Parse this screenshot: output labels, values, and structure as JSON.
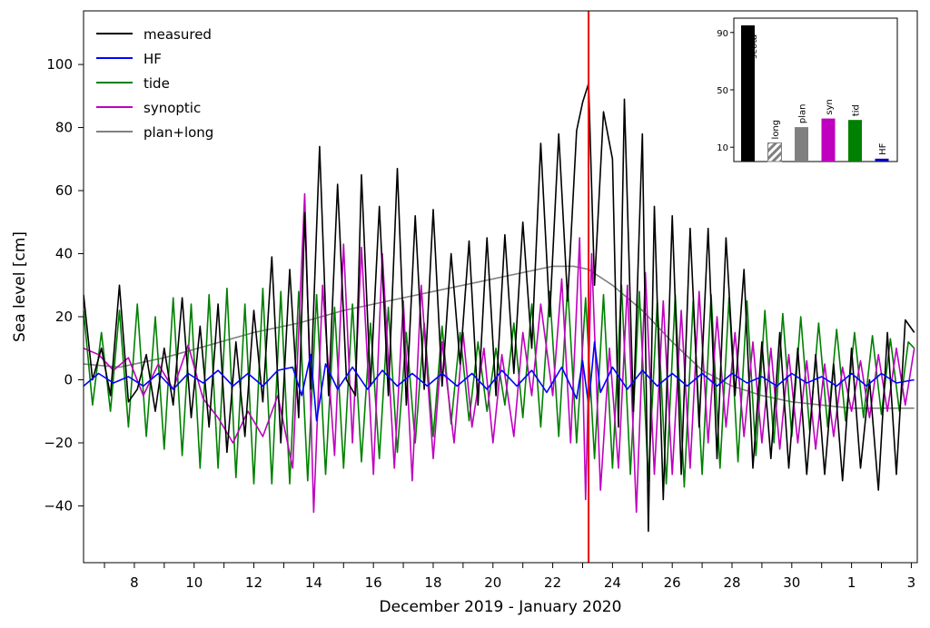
{
  "chart_data": [
    {
      "type": "line",
      "title": "",
      "xlabel": "December 2019 - January 2020",
      "ylabel": "Sea level [cm]",
      "x_unit": "day of period (day 1 = 1 December 2019, day 32 = 1 January 2020)",
      "xlim": [
        6.3,
        34.2
      ],
      "ylim": [
        -58,
        117
      ],
      "x_ticks": [
        {
          "day": 8,
          "label": "8"
        },
        {
          "day": 10,
          "label": "10"
        },
        {
          "day": 12,
          "label": "12"
        },
        {
          "day": 14,
          "label": "14"
        },
        {
          "day": 16,
          "label": "16"
        },
        {
          "day": 18,
          "label": "18"
        },
        {
          "day": 20,
          "label": "20"
        },
        {
          "day": 22,
          "label": "22"
        },
        {
          "day": 24,
          "label": "24"
        },
        {
          "day": 26,
          "label": "26"
        },
        {
          "day": 28,
          "label": "28"
        },
        {
          "day": 30,
          "label": "30"
        },
        {
          "day": 32,
          "label": "1"
        },
        {
          "day": 34,
          "label": "3"
        }
      ],
      "y_ticks": [
        {
          "value": -40,
          "label": "−40"
        },
        {
          "value": -20,
          "label": "−20"
        },
        {
          "value": 0,
          "label": "0"
        },
        {
          "value": 20,
          "label": "20"
        },
        {
          "value": 40,
          "label": "40"
        },
        {
          "value": 60,
          "label": "60"
        },
        {
          "value": 80,
          "label": "80"
        },
        {
          "value": 100,
          "label": "100"
        }
      ],
      "grid": false,
      "legend_position": "top-left",
      "vertical_marker": {
        "x": 23.2,
        "color": "#e8000b"
      },
      "series": [
        {
          "name": "measured",
          "color": "#000000",
          "x": [
            6.3,
            6.6,
            6.9,
            7.2,
            7.5,
            7.8,
            8.1,
            8.4,
            8.7,
            9.0,
            9.3,
            9.6,
            9.9,
            10.2,
            10.5,
            10.8,
            11.1,
            11.4,
            11.7,
            12.0,
            12.3,
            12.6,
            12.9,
            13.2,
            13.5,
            13.7,
            13.9,
            14.2,
            14.5,
            14.8,
            15.1,
            15.4,
            15.6,
            15.9,
            16.2,
            16.5,
            16.8,
            17.1,
            17.4,
            17.7,
            18.0,
            18.3,
            18.6,
            18.9,
            19.2,
            19.5,
            19.8,
            20.1,
            20.4,
            20.7,
            21.0,
            21.3,
            21.6,
            21.9,
            22.2,
            22.5,
            22.8,
            23.0,
            23.2,
            23.4,
            23.7,
            24.0,
            24.2,
            24.4,
            24.7,
            25.0,
            25.2,
            25.4,
            25.7,
            26.0,
            26.3,
            26.6,
            26.9,
            27.2,
            27.5,
            27.8,
            28.1,
            28.4,
            28.7,
            29.0,
            29.3,
            29.6,
            29.9,
            30.2,
            30.5,
            30.8,
            31.1,
            31.4,
            31.7,
            32.0,
            32.3,
            32.6,
            32.9,
            33.2,
            33.5,
            33.8,
            34.1
          ],
          "y": [
            27,
            0,
            10,
            -5,
            30,
            -7,
            -3,
            8,
            -10,
            10,
            -8,
            26,
            -12,
            17,
            -15,
            24,
            -23,
            12,
            -18,
            22,
            -7,
            39,
            -20,
            35,
            -12,
            53,
            -3,
            74,
            -5,
            62,
            0,
            -5,
            65,
            -2,
            55,
            -5,
            67,
            -8,
            52,
            -3,
            54,
            -2,
            40,
            5,
            44,
            -8,
            45,
            -5,
            46,
            2,
            50,
            10,
            75,
            20,
            78,
            25,
            79,
            88,
            94,
            30,
            85,
            70,
            -15,
            89,
            -10,
            78,
            -48,
            55,
            -38,
            52,
            -30,
            48,
            -15,
            48,
            -25,
            45,
            -5,
            35,
            -28,
            12,
            -25,
            15,
            -28,
            10,
            -30,
            8,
            -30,
            5,
            -32,
            10,
            -28,
            0,
            -35,
            15,
            -30,
            19,
            15
          ]
        },
        {
          "name": "HF",
          "color": "#0000ff",
          "x": [
            6.3,
            6.8,
            7.3,
            7.8,
            8.3,
            8.8,
            9.3,
            9.8,
            10.3,
            10.8,
            11.3,
            11.8,
            12.3,
            12.8,
            13.3,
            13.6,
            13.9,
            14.1,
            14.4,
            14.8,
            15.3,
            15.8,
            16.3,
            16.8,
            17.3,
            17.8,
            18.3,
            18.8,
            19.3,
            19.8,
            20.3,
            20.8,
            21.3,
            21.8,
            22.3,
            22.8,
            23.0,
            23.2,
            23.4,
            23.6,
            24.0,
            24.5,
            25.0,
            25.5,
            26.0,
            26.5,
            27.0,
            27.5,
            28.0,
            28.5,
            29.0,
            29.5,
            30.0,
            30.5,
            31.0,
            31.5,
            32.0,
            32.5,
            33.0,
            33.5,
            34.1
          ],
          "y": [
            -2,
            2,
            -1,
            1,
            -2,
            2,
            -3,
            2,
            -1,
            3,
            -2,
            2,
            -2,
            3,
            4,
            -5,
            8,
            -13,
            5,
            -3,
            4,
            -3,
            3,
            -2,
            2,
            -2,
            2,
            -2,
            2,
            -3,
            3,
            -2,
            3,
            -4,
            4,
            -6,
            6,
            -8,
            12,
            -4,
            4,
            -3,
            3,
            -2,
            2,
            -2,
            2,
            -2,
            2,
            -1,
            1,
            -2,
            2,
            -1,
            1,
            -2,
            2,
            -2,
            2,
            -1,
            0
          ]
        },
        {
          "name": "tide",
          "color": "#008000",
          "x": [
            6.3,
            6.6,
            6.9,
            7.2,
            7.5,
            7.8,
            8.1,
            8.4,
            8.7,
            9.0,
            9.3,
            9.6,
            9.9,
            10.2,
            10.5,
            10.8,
            11.1,
            11.4,
            11.7,
            12.0,
            12.3,
            12.6,
            12.9,
            13.2,
            13.5,
            13.8,
            14.1,
            14.4,
            14.7,
            15.0,
            15.3,
            15.6,
            15.9,
            16.2,
            16.5,
            16.8,
            17.1,
            17.4,
            17.7,
            18.0,
            18.3,
            18.6,
            18.9,
            19.2,
            19.5,
            19.8,
            20.1,
            20.4,
            20.7,
            21.0,
            21.3,
            21.6,
            21.9,
            22.2,
            22.5,
            22.8,
            23.1,
            23.4,
            23.7,
            24.0,
            24.3,
            24.6,
            24.9,
            25.2,
            25.5,
            25.8,
            26.1,
            26.4,
            26.7,
            27.0,
            27.3,
            27.6,
            27.9,
            28.2,
            28.5,
            28.8,
            29.1,
            29.4,
            29.7,
            30.0,
            30.3,
            30.6,
            30.9,
            31.2,
            31.5,
            31.8,
            32.1,
            32.4,
            32.7,
            33.0,
            33.3,
            33.6,
            33.9,
            34.1
          ],
          "y": [
            22,
            -8,
            15,
            -10,
            22,
            -15,
            24,
            -18,
            20,
            -22,
            26,
            -24,
            24,
            -28,
            27,
            -28,
            29,
            -31,
            24,
            -33,
            29,
            -33,
            28,
            -33,
            28,
            -32,
            27,
            -30,
            23,
            -28,
            24,
            -26,
            18,
            -25,
            23,
            -23,
            15,
            -20,
            18,
            -18,
            17,
            -14,
            15,
            -13,
            12,
            -10,
            10,
            -8,
            18,
            -12,
            24,
            -15,
            28,
            -18,
            30,
            -20,
            26,
            -25,
            27,
            -28,
            30,
            -30,
            28,
            -32,
            25,
            -33,
            27,
            -34,
            25,
            -30,
            27,
            -28,
            26,
            -26,
            25,
            -24,
            22,
            -20,
            21,
            -18,
            20,
            -16,
            18,
            -15,
            16,
            -13,
            15,
            -12,
            14,
            -11,
            13,
            -10,
            12,
            10
          ]
        },
        {
          "name": "synoptic",
          "color": "#bf00bf",
          "x": [
            6.3,
            6.8,
            7.3,
            7.8,
            8.3,
            8.8,
            9.3,
            9.8,
            10.3,
            10.8,
            11.3,
            11.8,
            12.3,
            12.8,
            13.3,
            13.7,
            14.0,
            14.3,
            14.7,
            15.0,
            15.3,
            15.6,
            16.0,
            16.3,
            16.7,
            17.0,
            17.3,
            17.6,
            18.0,
            18.3,
            18.7,
            19.0,
            19.3,
            19.7,
            20.0,
            20.3,
            20.7,
            21.0,
            21.3,
            21.6,
            22.0,
            22.3,
            22.6,
            22.9,
            23.1,
            23.3,
            23.6,
            23.9,
            24.2,
            24.5,
            24.8,
            25.1,
            25.4,
            25.7,
            26.0,
            26.3,
            26.6,
            26.9,
            27.2,
            27.5,
            27.8,
            28.1,
            28.4,
            28.7,
            29.0,
            29.3,
            29.6,
            29.9,
            30.2,
            30.5,
            30.8,
            31.1,
            31.4,
            31.7,
            32.0,
            32.3,
            32.6,
            32.9,
            33.2,
            33.5,
            33.8,
            34.1
          ],
          "y": [
            10,
            8,
            3,
            7,
            -5,
            5,
            -3,
            11,
            -6,
            -12,
            -20,
            -10,
            -18,
            -5,
            -28,
            59,
            -42,
            30,
            -24,
            43,
            -20,
            42,
            -30,
            40,
            -28,
            25,
            -32,
            30,
            -25,
            12,
            -20,
            15,
            -15,
            10,
            -20,
            8,
            -18,
            15,
            -5,
            24,
            -5,
            32,
            -20,
            45,
            -38,
            40,
            -35,
            10,
            -28,
            30,
            -42,
            34,
            -30,
            25,
            -30,
            22,
            -28,
            28,
            -20,
            20,
            -15,
            15,
            -18,
            12,
            -20,
            10,
            -22,
            8,
            -20,
            6,
            -22,
            5,
            -18,
            4,
            -10,
            6,
            -12,
            8,
            -10,
            10,
            -8,
            10
          ]
        },
        {
          "name": "plan+long",
          "color": "#808080",
          "x": [
            6.3,
            7.5,
            9.0,
            10.5,
            12.0,
            13.5,
            15.0,
            16.5,
            18.0,
            19.5,
            21.0,
            22.0,
            22.7,
            23.2,
            24.0,
            25.0,
            26.0,
            27.0,
            28.0,
            29.0,
            30.0,
            31.0,
            32.0,
            33.0,
            34.1
          ],
          "y": [
            5,
            4,
            7,
            11,
            15,
            18,
            22,
            25,
            28,
            31,
            34,
            36,
            36,
            35,
            30,
            22,
            12,
            3,
            -2,
            -5,
            -7,
            -8,
            -9,
            -9,
            -9
          ]
        }
      ]
    },
    {
      "type": "bar",
      "title": "",
      "xlabel": "",
      "ylabel": "",
      "ylim": [
        0,
        100
      ],
      "y_ticks": [
        {
          "value": 10,
          "label": "10"
        },
        {
          "value": 50,
          "label": "50"
        },
        {
          "value": 90,
          "label": "90"
        }
      ],
      "grid": false,
      "categories": [
        "meas",
        "long",
        "plan",
        "syn",
        "tid",
        "HF"
      ],
      "values": [
        95,
        13,
        24,
        30,
        29,
        2
      ],
      "colors": [
        "#000000",
        "#808080",
        "#808080",
        "#bf00bf",
        "#008000",
        "#0000bb"
      ],
      "hatched": [
        false,
        true,
        false,
        false,
        false,
        false
      ]
    }
  ]
}
